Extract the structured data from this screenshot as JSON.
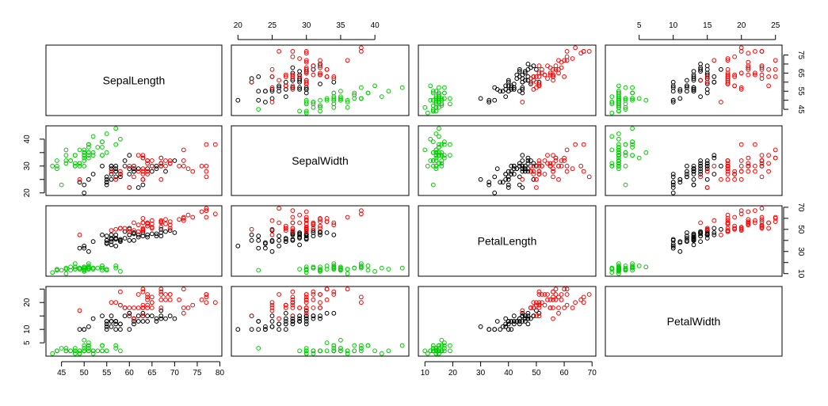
{
  "chart_data": {
    "type": "scatter-matrix",
    "variables": [
      {
        "name": "SepalLength",
        "range": [
          43,
          79
        ],
        "ticks": [
          45,
          50,
          55,
          60,
          65,
          70,
          75,
          80
        ],
        "shown_labels_outer": [
          "45",
          "50",
          "55",
          "60",
          "65",
          "70",
          "75",
          "80"
        ],
        "side_ticks": [
          45,
          50,
          55,
          60,
          65,
          70,
          75
        ],
        "side_labels": [
          "45",
          "55",
          "65",
          "75"
        ]
      },
      {
        "name": "SepalWidth",
        "range": [
          20,
          44
        ],
        "ticks": [
          20,
          25,
          30,
          35,
          40
        ],
        "shown_labels_outer": [
          "20",
          "25",
          "30",
          "35",
          "40"
        ],
        "side_ticks": [
          20,
          25,
          30,
          35,
          40
        ],
        "side_labels": [
          "20",
          "30",
          "40"
        ]
      },
      {
        "name": "PetalLength",
        "range": [
          10,
          69
        ],
        "ticks": [
          10,
          20,
          30,
          40,
          50,
          60,
          70
        ],
        "shown_labels_outer": [
          "10",
          "20",
          "30",
          "40",
          "50",
          "60",
          "70"
        ],
        "side_ticks": [
          10,
          20,
          30,
          40,
          50,
          60,
          70
        ],
        "side_labels": [
          "10",
          "30",
          "50",
          "70"
        ]
      },
      {
        "name": "PetalWidth",
        "range": [
          1,
          25
        ],
        "ticks": [
          5,
          10,
          15,
          20,
          25
        ],
        "shown_labels_outer": [
          "5",
          "10",
          "15",
          "20",
          "25"
        ],
        "side_ticks": [
          5,
          10,
          15,
          20,
          25
        ],
        "side_labels": [
          "5",
          "10",
          "20"
        ]
      }
    ],
    "axis_sides": {
      "top": [
        1,
        3
      ],
      "bottom": [
        0,
        2
      ],
      "left": [
        1,
        3
      ],
      "right": [
        0,
        2
      ]
    },
    "grid": false,
    "legend": "none",
    "marker": "open-circle",
    "series": [
      {
        "color": "#00CD00",
        "points": [
          [
            51,
            35,
            14,
            2
          ],
          [
            49,
            30,
            14,
            2
          ],
          [
            47,
            32,
            13,
            2
          ],
          [
            46,
            31,
            15,
            2
          ],
          [
            50,
            36,
            14,
            2
          ],
          [
            54,
            39,
            17,
            4
          ],
          [
            46,
            34,
            14,
            3
          ],
          [
            50,
            34,
            15,
            2
          ],
          [
            44,
            29,
            14,
            2
          ],
          [
            49,
            31,
            15,
            1
          ],
          [
            54,
            37,
            15,
            2
          ],
          [
            48,
            34,
            16,
            2
          ],
          [
            48,
            30,
            14,
            1
          ],
          [
            43,
            30,
            11,
            1
          ],
          [
            58,
            40,
            12,
            2
          ],
          [
            57,
            44,
            15,
            4
          ],
          [
            54,
            39,
            13,
            4
          ],
          [
            51,
            35,
            14,
            3
          ],
          [
            57,
            38,
            17,
            3
          ],
          [
            51,
            38,
            15,
            3
          ],
          [
            54,
            34,
            17,
            2
          ],
          [
            51,
            37,
            15,
            4
          ],
          [
            46,
            36,
            10,
            2
          ],
          [
            51,
            33,
            17,
            5
          ],
          [
            48,
            34,
            19,
            2
          ],
          [
            50,
            30,
            16,
            2
          ],
          [
            50,
            34,
            16,
            4
          ],
          [
            52,
            35,
            15,
            2
          ],
          [
            52,
            34,
            14,
            2
          ],
          [
            47,
            32,
            16,
            2
          ],
          [
            48,
            31,
            16,
            2
          ],
          [
            54,
            34,
            15,
            4
          ],
          [
            52,
            41,
            15,
            1
          ],
          [
            55,
            42,
            14,
            2
          ],
          [
            49,
            31,
            15,
            2
          ],
          [
            50,
            32,
            12,
            2
          ],
          [
            55,
            35,
            13,
            2
          ],
          [
            49,
            36,
            14,
            1
          ],
          [
            44,
            30,
            13,
            2
          ],
          [
            51,
            34,
            15,
            2
          ],
          [
            50,
            35,
            13,
            3
          ],
          [
            45,
            23,
            13,
            3
          ],
          [
            44,
            32,
            13,
            2
          ],
          [
            50,
            35,
            16,
            6
          ],
          [
            51,
            38,
            19,
            4
          ],
          [
            48,
            30,
            14,
            3
          ],
          [
            51,
            38,
            16,
            2
          ],
          [
            46,
            32,
            14,
            2
          ],
          [
            53,
            37,
            15,
            2
          ],
          [
            50,
            33,
            14,
            2
          ]
        ]
      },
      {
        "color": "#000000",
        "points": [
          [
            70,
            32,
            47,
            14
          ],
          [
            64,
            32,
            45,
            15
          ],
          [
            69,
            31,
            49,
            15
          ],
          [
            55,
            23,
            40,
            13
          ],
          [
            65,
            28,
            46,
            15
          ],
          [
            57,
            28,
            45,
            13
          ],
          [
            63,
            33,
            47,
            16
          ],
          [
            49,
            24,
            33,
            10
          ],
          [
            66,
            29,
            46,
            13
          ],
          [
            52,
            27,
            39,
            14
          ],
          [
            50,
            20,
            35,
            10
          ],
          [
            59,
            30,
            42,
            15
          ],
          [
            60,
            22,
            40,
            10
          ],
          [
            61,
            29,
            47,
            14
          ],
          [
            56,
            29,
            36,
            13
          ],
          [
            67,
            31,
            44,
            14
          ],
          [
            56,
            30,
            45,
            15
          ],
          [
            58,
            27,
            41,
            10
          ],
          [
            62,
            22,
            45,
            15
          ],
          [
            56,
            25,
            39,
            11
          ],
          [
            59,
            32,
            48,
            18
          ],
          [
            61,
            28,
            40,
            13
          ],
          [
            63,
            25,
            49,
            15
          ],
          [
            61,
            28,
            47,
            12
          ],
          [
            64,
            29,
            43,
            13
          ],
          [
            66,
            30,
            44,
            14
          ],
          [
            68,
            28,
            48,
            14
          ],
          [
            67,
            30,
            50,
            17
          ],
          [
            60,
            29,
            45,
            15
          ],
          [
            57,
            26,
            35,
            10
          ],
          [
            55,
            24,
            38,
            11
          ],
          [
            55,
            24,
            37,
            10
          ],
          [
            58,
            27,
            39,
            12
          ],
          [
            60,
            27,
            51,
            16
          ],
          [
            54,
            30,
            45,
            15
          ],
          [
            60,
            34,
            45,
            16
          ],
          [
            67,
            31,
            47,
            15
          ],
          [
            63,
            23,
            44,
            13
          ],
          [
            56,
            30,
            41,
            13
          ],
          [
            55,
            25,
            40,
            13
          ],
          [
            55,
            26,
            44,
            12
          ],
          [
            61,
            30,
            46,
            14
          ],
          [
            58,
            26,
            40,
            12
          ],
          [
            50,
            23,
            33,
            10
          ],
          [
            56,
            27,
            42,
            13
          ],
          [
            57,
            30,
            42,
            12
          ],
          [
            57,
            29,
            42,
            13
          ],
          [
            62,
            29,
            43,
            13
          ],
          [
            51,
            25,
            30,
            11
          ],
          [
            57,
            28,
            41,
            13
          ]
        ]
      },
      {
        "color": "#FF0000",
        "points": [
          [
            63,
            33,
            60,
            25
          ],
          [
            58,
            27,
            51,
            19
          ],
          [
            71,
            30,
            59,
            21
          ],
          [
            63,
            29,
            56,
            18
          ],
          [
            65,
            30,
            58,
            22
          ],
          [
            76,
            30,
            66,
            21
          ],
          [
            49,
            25,
            45,
            17
          ],
          [
            73,
            29,
            63,
            18
          ],
          [
            67,
            25,
            58,
            18
          ],
          [
            72,
            36,
            61,
            25
          ],
          [
            65,
            32,
            51,
            20
          ],
          [
            64,
            27,
            53,
            19
          ],
          [
            68,
            30,
            55,
            21
          ],
          [
            57,
            25,
            50,
            20
          ],
          [
            58,
            28,
            51,
            24
          ],
          [
            64,
            32,
            53,
            23
          ],
          [
            65,
            30,
            55,
            18
          ],
          [
            77,
            38,
            67,
            22
          ],
          [
            77,
            26,
            69,
            23
          ],
          [
            60,
            22,
            50,
            15
          ],
          [
            69,
            32,
            57,
            23
          ],
          [
            56,
            28,
            49,
            20
          ],
          [
            77,
            28,
            67,
            20
          ],
          [
            63,
            27,
            49,
            18
          ],
          [
            67,
            33,
            57,
            21
          ],
          [
            72,
            32,
            60,
            18
          ],
          [
            62,
            28,
            48,
            18
          ],
          [
            61,
            30,
            49,
            18
          ],
          [
            64,
            28,
            56,
            21
          ],
          [
            72,
            30,
            58,
            16
          ],
          [
            74,
            28,
            61,
            19
          ],
          [
            79,
            38,
            64,
            20
          ],
          [
            64,
            28,
            56,
            22
          ],
          [
            63,
            28,
            51,
            15
          ],
          [
            61,
            26,
            56,
            14
          ],
          [
            77,
            30,
            61,
            23
          ],
          [
            63,
            34,
            56,
            24
          ],
          [
            64,
            31,
            55,
            18
          ],
          [
            60,
            30,
            48,
            18
          ],
          [
            69,
            31,
            54,
            21
          ],
          [
            67,
            31,
            56,
            24
          ],
          [
            69,
            31,
            51,
            23
          ],
          [
            58,
            27,
            51,
            19
          ],
          [
            68,
            32,
            59,
            23
          ],
          [
            67,
            33,
            57,
            25
          ],
          [
            67,
            30,
            52,
            23
          ],
          [
            63,
            25,
            50,
            19
          ],
          [
            65,
            30,
            52,
            20
          ],
          [
            62,
            34,
            54,
            23
          ],
          [
            59,
            30,
            51,
            18
          ]
        ]
      }
    ]
  }
}
